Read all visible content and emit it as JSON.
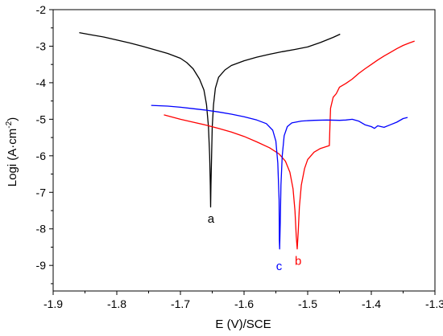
{
  "chart_data": {
    "type": "line",
    "title": "",
    "xlabel": "E (V)/SCE",
    "ylabel": "Logi (A·cm",
    "ylabel_sup": "-2",
    "ylabel_close": ")",
    "xlim": [
      -1.9,
      -1.3
    ],
    "ylim": [
      -9.7,
      -2
    ],
    "x_ticks": [
      -1.9,
      -1.8,
      -1.7,
      -1.6,
      -1.5,
      -1.4,
      -1.3
    ],
    "x_tick_labels": [
      "-1.9",
      "-1.8",
      "-1.7",
      "-1.6",
      "-1.5",
      "-1.4",
      "-1.3"
    ],
    "y_ticks": [
      -2,
      -3,
      -4,
      -5,
      -6,
      -7,
      -8,
      -9
    ],
    "y_tick_labels": [
      "-2",
      "-3",
      "-4",
      "-5",
      "-6",
      "-7",
      "-8",
      "-9"
    ],
    "grid": false,
    "series": [
      {
        "name": "a",
        "color": "#000000",
        "label_at": [
          -1.652,
          -7.7
        ],
        "points": [
          [
            -1.859,
            -2.63
          ],
          [
            -1.84,
            -2.69
          ],
          [
            -1.82,
            -2.75
          ],
          [
            -1.8,
            -2.83
          ],
          [
            -1.78,
            -2.91
          ],
          [
            -1.76,
            -3.0
          ],
          [
            -1.74,
            -3.1
          ],
          [
            -1.72,
            -3.2
          ],
          [
            -1.7,
            -3.33
          ],
          [
            -1.69,
            -3.45
          ],
          [
            -1.68,
            -3.62
          ],
          [
            -1.67,
            -3.9
          ],
          [
            -1.663,
            -4.2
          ],
          [
            -1.659,
            -4.6
          ],
          [
            -1.656,
            -5.2
          ],
          [
            -1.654,
            -6.0
          ],
          [
            -1.653,
            -6.8
          ],
          [
            -1.6525,
            -7.4
          ],
          [
            -1.652,
            -6.8
          ],
          [
            -1.651,
            -6.0
          ],
          [
            -1.65,
            -5.2
          ],
          [
            -1.648,
            -4.6
          ],
          [
            -1.645,
            -4.15
          ],
          [
            -1.64,
            -3.85
          ],
          [
            -1.63,
            -3.65
          ],
          [
            -1.62,
            -3.53
          ],
          [
            -1.6,
            -3.4
          ],
          [
            -1.58,
            -3.3
          ],
          [
            -1.56,
            -3.22
          ],
          [
            -1.54,
            -3.15
          ],
          [
            -1.52,
            -3.09
          ],
          [
            -1.5,
            -3.02
          ],
          [
            -1.48,
            -2.9
          ],
          [
            -1.46,
            -2.76
          ],
          [
            -1.449,
            -2.67
          ]
        ]
      },
      {
        "name": "b",
        "color": "#ff0000",
        "label_at": [
          -1.515,
          -8.85
        ],
        "points": [
          [
            -1.726,
            -4.88
          ],
          [
            -1.7,
            -5.0
          ],
          [
            -1.68,
            -5.08
          ],
          [
            -1.66,
            -5.16
          ],
          [
            -1.64,
            -5.25
          ],
          [
            -1.62,
            -5.35
          ],
          [
            -1.6,
            -5.47
          ],
          [
            -1.58,
            -5.62
          ],
          [
            -1.56,
            -5.78
          ],
          [
            -1.545,
            -5.95
          ],
          [
            -1.535,
            -6.15
          ],
          [
            -1.528,
            -6.45
          ],
          [
            -1.523,
            -6.9
          ],
          [
            -1.52,
            -7.5
          ],
          [
            -1.518,
            -8.2
          ],
          [
            -1.5165,
            -8.55
          ],
          [
            -1.515,
            -8.1
          ],
          [
            -1.513,
            -7.4
          ],
          [
            -1.51,
            -6.8
          ],
          [
            -1.505,
            -6.35
          ],
          [
            -1.5,
            -6.1
          ],
          [
            -1.49,
            -5.9
          ],
          [
            -1.48,
            -5.8
          ],
          [
            -1.466,
            -5.72
          ],
          [
            -1.465,
            -5.2
          ],
          [
            -1.464,
            -4.7
          ],
          [
            -1.46,
            -4.4
          ],
          [
            -1.455,
            -4.3
          ],
          [
            -1.45,
            -4.12
          ],
          [
            -1.44,
            -4.02
          ],
          [
            -1.43,
            -3.9
          ],
          [
            -1.42,
            -3.75
          ],
          [
            -1.41,
            -3.62
          ],
          [
            -1.4,
            -3.5
          ],
          [
            -1.39,
            -3.38
          ],
          [
            -1.38,
            -3.27
          ],
          [
            -1.37,
            -3.17
          ],
          [
            -1.36,
            -3.07
          ],
          [
            -1.35,
            -2.98
          ],
          [
            -1.34,
            -2.91
          ],
          [
            -1.332,
            -2.86
          ]
        ]
      },
      {
        "name": "c",
        "color": "#0000ff",
        "label_at": [
          -1.545,
          -9.0
        ],
        "points": [
          [
            -1.746,
            -4.62
          ],
          [
            -1.72,
            -4.64
          ],
          [
            -1.7,
            -4.67
          ],
          [
            -1.68,
            -4.71
          ],
          [
            -1.66,
            -4.75
          ],
          [
            -1.64,
            -4.8
          ],
          [
            -1.62,
            -4.86
          ],
          [
            -1.6,
            -4.93
          ],
          [
            -1.58,
            -5.02
          ],
          [
            -1.565,
            -5.12
          ],
          [
            -1.555,
            -5.3
          ],
          [
            -1.55,
            -5.6
          ],
          [
            -1.547,
            -6.2
          ],
          [
            -1.545,
            -7.2
          ],
          [
            -1.5445,
            -8.3
          ],
          [
            -1.544,
            -8.55
          ],
          [
            -1.543,
            -7.8
          ],
          [
            -1.542,
            -6.8
          ],
          [
            -1.54,
            -6.0
          ],
          [
            -1.537,
            -5.45
          ],
          [
            -1.532,
            -5.2
          ],
          [
            -1.525,
            -5.1
          ],
          [
            -1.51,
            -5.05
          ],
          [
            -1.49,
            -5.03
          ],
          [
            -1.47,
            -5.02
          ],
          [
            -1.45,
            -5.03
          ],
          [
            -1.44,
            -5.02
          ],
          [
            -1.43,
            -5.0
          ],
          [
            -1.42,
            -5.05
          ],
          [
            -1.41,
            -5.15
          ],
          [
            -1.4,
            -5.2
          ],
          [
            -1.395,
            -5.25
          ],
          [
            -1.39,
            -5.18
          ],
          [
            -1.38,
            -5.22
          ],
          [
            -1.37,
            -5.15
          ],
          [
            -1.36,
            -5.08
          ],
          [
            -1.35,
            -4.98
          ],
          [
            -1.343,
            -4.95
          ]
        ]
      }
    ]
  }
}
